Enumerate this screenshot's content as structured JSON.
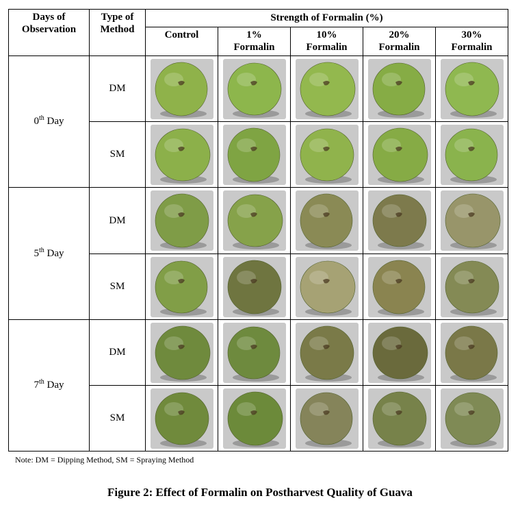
{
  "headers": {
    "days": [
      "Days of",
      "Observation"
    ],
    "method": [
      "Type of",
      "Method"
    ],
    "strength": "Strength of Formalin (%)",
    "columns": [
      {
        "line1": "Control",
        "line2": ""
      },
      {
        "line1": "1%",
        "line2": "Formalin"
      },
      {
        "line1": "10%",
        "line2": "Formalin"
      },
      {
        "line1": "20%",
        "line2": "Formalin"
      },
      {
        "line1": "30%",
        "line2": "Formalin"
      }
    ]
  },
  "days": [
    {
      "num": "0",
      "sup": "th",
      "label": "Day"
    },
    {
      "num": "5",
      "sup": "th",
      "label": "Day"
    },
    {
      "num": "7",
      "sup": "th",
      "label": "Day"
    }
  ],
  "methods": [
    "DM",
    "SM"
  ],
  "photos": [
    [
      "#8fb24a",
      "#8db64c",
      "#93b84e",
      "#86ac45",
      "#8fb850"
    ],
    [
      "#8cb04a",
      "#7fa443",
      "#90b34c",
      "#86ab45",
      "#8ab34d"
    ],
    [
      "#7f9c47",
      "#86a24a",
      "#8a8a55",
      "#7d7a4c",
      "#98956a"
    ],
    [
      "#819e47",
      "#6f7540",
      "#a6a274",
      "#8a8450",
      "#848a55"
    ],
    [
      "#6f8a3d",
      "#6e8a3e",
      "#7a7a48",
      "#6a6a3c",
      "#7a7848"
    ],
    [
      "#708a3c",
      "#6c8a3a",
      "#85845a",
      "#77824a",
      "#7f8a55"
    ]
  ],
  "photo_background": "#c9c9c9",
  "note": "Note: DM = Dipping Method, SM = Spraying Method",
  "caption": "Figure 2: Effect of Formalin on Postharvest Quality of Guava"
}
